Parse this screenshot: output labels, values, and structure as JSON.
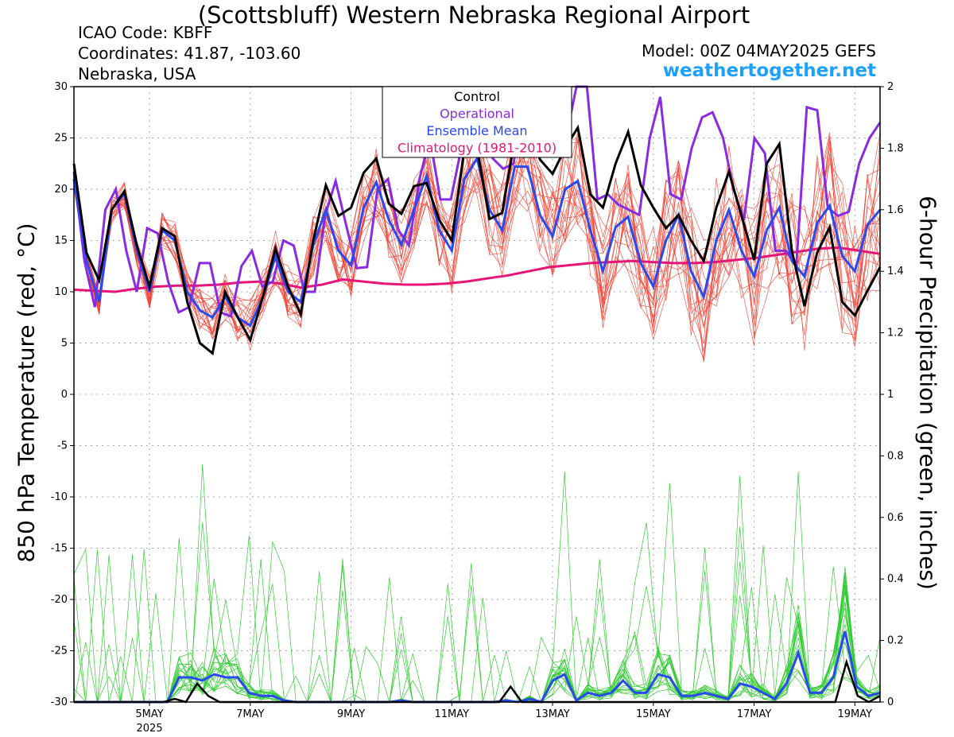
{
  "header": {
    "title": "(Scottsbluff) Western Nebraska Regional Airport",
    "icao": "ICAO Code: KBFF",
    "coordinates": "Coordinates: 41.87, -103.60",
    "region": "Nebraska, USA",
    "model": "Model: 00Z 04MAY2025 GEFS",
    "site": "weathertogether.net"
  },
  "chart_data": {
    "type": "line",
    "ylabel": "850 hPa Temperature (red, °C)",
    "y2label": "6-hour Precipitation (green, inches)",
    "ylim": [
      -30,
      30
    ],
    "y2lim": [
      0,
      2
    ],
    "yticks": [
      30,
      25,
      20,
      15,
      10,
      5,
      0,
      -5,
      -10,
      -15,
      -20,
      -25,
      -30
    ],
    "y2ticks": [
      2,
      1.8,
      1.6,
      1.4,
      1.2,
      1,
      0.8,
      0.6,
      0.4,
      0.2,
      0
    ],
    "xlim": [
      0,
      64
    ],
    "x_unit": "6-hour steps from 00Z 04MAY2025",
    "xticks": [
      {
        "x": 6,
        "label": "5MAY",
        "sublabel": "2025"
      },
      {
        "x": 14,
        "label": "7MAY",
        "sublabel": ""
      },
      {
        "x": 22,
        "label": "9MAY",
        "sublabel": ""
      },
      {
        "x": 30,
        "label": "11MAY",
        "sublabel": ""
      },
      {
        "x": 38,
        "label": "13MAY",
        "sublabel": ""
      },
      {
        "x": 46,
        "label": "15MAY",
        "sublabel": ""
      },
      {
        "x": 54,
        "label": "17MAY",
        "sublabel": ""
      },
      {
        "x": 62,
        "label": "19MAY",
        "sublabel": ""
      }
    ],
    "grid": true,
    "legend_position": "top-center",
    "legend": [
      {
        "label": "Control",
        "color": "#000000"
      },
      {
        "label": "Operational",
        "color": "#8a2be2"
      },
      {
        "label": "Ensemble Mean",
        "color": "#2a4af0"
      },
      {
        "label": "Climatology (1981-2010)",
        "color": "#e8147a"
      }
    ],
    "colors": {
      "members_temp": "#f04030",
      "members_precip": "#33cc33",
      "control": "#000000",
      "operational": "#8a2be2",
      "ensemble_mean": "#2a4af0",
      "climatology": "#e8147a"
    },
    "temperature": {
      "control": [
        22.5,
        13.8,
        11.1,
        18.0,
        19.8,
        14.5,
        10.5,
        16.2,
        15.4,
        9.0,
        5.0,
        4.0,
        10.0,
        7.5,
        5.3,
        9.5,
        14.2,
        10.5,
        7.8,
        15.0,
        20.4,
        17.4,
        18.2,
        21.6,
        23.0,
        18.6,
        17.6,
        20.3,
        20.6,
        17.0,
        15.0,
        24.0,
        24.0,
        17.1,
        17.7,
        25.0,
        27.0,
        22.9,
        21.5,
        24.0,
        26.0,
        19.5,
        18.2,
        22.5,
        25.6,
        20.4,
        18.2,
        16.2,
        17.5,
        15.0,
        13.0,
        18.2,
        21.7,
        17.4,
        13.1,
        22.5,
        24.4,
        14.0,
        8.6,
        13.8,
        16.3,
        9.0,
        7.7,
        10.1,
        12.4
      ],
      "operational": [
        21.7,
        13.0,
        8.5,
        18.0,
        20.0,
        14.0,
        10.0,
        16.2,
        15.7,
        11.0,
        8.0,
        8.5,
        12.8,
        12.8,
        8.0,
        7.6,
        12.5,
        14.0,
        10.5,
        11.0,
        15.0,
        14.5,
        10.0,
        10.0,
        17.5,
        20.8,
        16.5,
        12.3,
        12.4,
        20.0,
        21.0,
        16.0,
        14.5,
        21.0,
        25.0,
        19.0,
        19.0,
        24.0,
        24.0,
        29.0,
        23.0,
        22.0,
        22.5,
        30.0,
        27.0,
        24.0,
        23.5,
        25.0,
        30.0,
        30.0,
        19.0,
        19.5,
        18.5,
        18.0,
        17.5,
        25.0,
        29.0,
        19.5,
        19.0,
        24.0,
        27.0,
        27.5,
        25.0,
        20.0,
        17.0,
        25.0,
        23.5,
        14.0,
        14.0,
        12.5,
        28.0,
        27.7,
        18.2,
        17.4,
        17.8,
        22.5,
        25.0,
        26.5
      ],
      "ensemble_mean": [
        21.0,
        13.0,
        9.0,
        18.0,
        19.6,
        14.0,
        10.0,
        16.0,
        15.0,
        10.0,
        8.2,
        7.5,
        9.5,
        7.5,
        6.7,
        9.5,
        13.4,
        10.0,
        9.0,
        14.5,
        18.0,
        14.0,
        12.6,
        18.2,
        20.7,
        17.0,
        14.6,
        18.0,
        21.3,
        16.0,
        14.0,
        21.0,
        23.0,
        18.0,
        16.0,
        22.2,
        22.2,
        17.5,
        15.4,
        20.0,
        20.8,
        16.0,
        12.0,
        16.3,
        17.3,
        12.8,
        10.5,
        15.0,
        17.5,
        12.0,
        9.5,
        15.0,
        18.0,
        14.0,
        11.5,
        16.0,
        18.2,
        13.0,
        11.5,
        16.7,
        18.4,
        13.5,
        12.0,
        16.5,
        18.0
      ],
      "climatology": [
        10.2,
        10.1,
        10.0,
        10.3,
        10.5,
        10.6,
        10.6,
        10.7,
        10.9,
        11.0,
        10.8,
        10.4,
        10.7,
        11.2,
        11.0,
        10.8,
        10.7,
        10.7,
        10.8,
        11.0,
        11.3,
        11.6,
        12.0,
        12.4,
        12.6,
        12.8,
        12.9,
        13.0,
        12.9,
        12.8,
        12.8,
        12.9,
        13.1,
        13.3,
        13.6,
        13.9,
        14.2,
        14.3,
        14.0,
        13.7
      ]
    },
    "precipitation": {
      "control": [
        0,
        0,
        0,
        0,
        0,
        0,
        0,
        0,
        0,
        0.01,
        0,
        0.06,
        0.02,
        0,
        0,
        0,
        0,
        0,
        0,
        0,
        0,
        0,
        0,
        0,
        0,
        0,
        0,
        0,
        0,
        0,
        0,
        0,
        0,
        0,
        0,
        0,
        0,
        0,
        0,
        0.05,
        0,
        0,
        0,
        0,
        0,
        0,
        0,
        0,
        0,
        0,
        0,
        0,
        0,
        0,
        0,
        0,
        0,
        0,
        0,
        0,
        0,
        0,
        0,
        0,
        0,
        0,
        0,
        0,
        0,
        0.13,
        0.02,
        0,
        0.02
      ],
      "ensemble_mean": [
        0,
        0,
        0,
        0,
        0,
        0,
        0,
        0,
        0,
        0.08,
        0.08,
        0.07,
        0.09,
        0.08,
        0.08,
        0.03,
        0.02,
        0.02,
        0.005,
        0,
        0,
        0,
        0,
        0,
        0,
        0,
        0,
        0,
        0.005,
        0,
        0,
        0,
        0,
        0,
        0,
        0,
        0,
        0.005,
        0,
        0.01,
        0,
        0.07,
        0.09,
        0.005,
        0.03,
        0.02,
        0.03,
        0.07,
        0.03,
        0.03,
        0.09,
        0.08,
        0.02,
        0.02,
        0.03,
        0.02,
        0.01,
        0.06,
        0.05,
        0.03,
        0.01,
        0.06,
        0.16,
        0.03,
        0.03,
        0.08,
        0.23,
        0.05,
        0.02,
        0.03
      ]
    }
  }
}
